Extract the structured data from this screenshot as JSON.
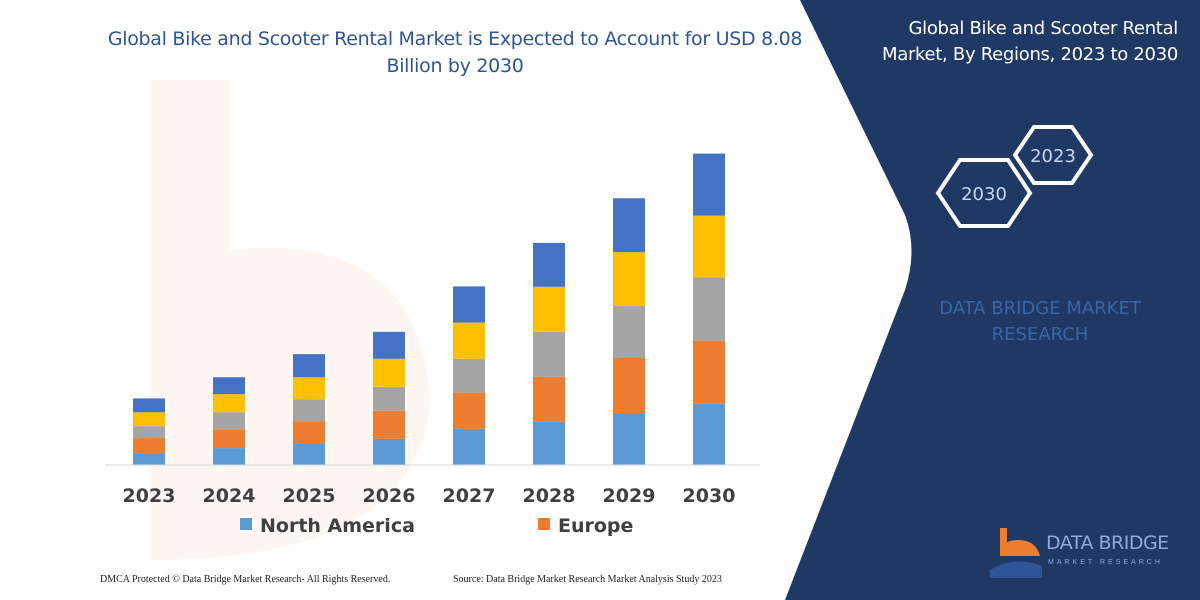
{
  "chart_data": {
    "type": "bar",
    "stacked": true,
    "title": "Global Bike and Scooter Rental Market is Expected to Account for USD 8.08 Billion by 2030",
    "categories": [
      "2023",
      "2024",
      "2025",
      "2026",
      "2027",
      "2028",
      "2029",
      "2030"
    ],
    "series": [
      {
        "name": "North America",
        "color": "#5b9bd5",
        "values": [
          0.31,
          0.44,
          0.57,
          0.68,
          0.94,
          1.12,
          1.35,
          1.59
        ]
      },
      {
        "name": "Europe",
        "color": "#ed7d31",
        "values": [
          0.39,
          0.49,
          0.57,
          0.73,
          0.94,
          1.17,
          1.43,
          1.64
        ]
      },
      {
        "color": "#a5a5a5",
        "values": [
          0.31,
          0.44,
          0.57,
          0.62,
          0.88,
          1.17,
          1.35,
          1.64
        ]
      },
      {
        "color": "#ffc000",
        "values": [
          0.36,
          0.47,
          0.57,
          0.73,
          0.94,
          1.17,
          1.4,
          1.61
        ]
      },
      {
        "color": "#4472c4",
        "values": [
          0.36,
          0.44,
          0.6,
          0.7,
          0.94,
          1.14,
          1.4,
          1.61
        ]
      }
    ],
    "xlabel": "",
    "ylabel": "",
    "grid": false,
    "legend_placement": "bottom"
  },
  "panel": {
    "title": "Global Bike and Scooter Rental Market, By Regions, 2023 to 2030",
    "hex_start": "2023",
    "hex_end": "2030",
    "watermark": "DATA BRIDGE MARKET RESEARCH",
    "bg_color": "#1f3864"
  },
  "logo": {
    "name": "DATA BRIDGE",
    "sub": "MARKET RESEARCH"
  },
  "footer": {
    "copyright": "DMCA Protected © Data Bridge Market Research-  All Rights Reserved.",
    "source": "Source: Data Bridge Market Research  Market Analysis Study 2023"
  }
}
